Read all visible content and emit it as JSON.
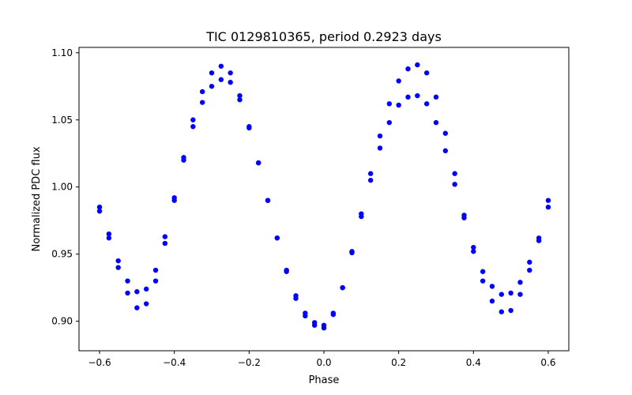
{
  "chart_data": {
    "type": "scatter",
    "title": "TIC 0129810365, period 0.2923 days",
    "xlabel": "Phase",
    "ylabel": "Normalized PDC flux",
    "xlim": [
      -0.655,
      0.655
    ],
    "ylim": [
      0.878,
      1.104
    ],
    "xticks": [
      -0.6,
      -0.4,
      -0.2,
      0.0,
      0.2,
      0.4,
      0.6
    ],
    "xtick_labels": [
      "−0.6",
      "−0.4",
      "−0.2",
      "0.0",
      "0.2",
      "0.4",
      "0.6"
    ],
    "yticks": [
      0.9,
      0.95,
      1.0,
      1.05,
      1.1
    ],
    "ytick_labels": [
      "0.90",
      "0.95",
      "1.00",
      "1.05",
      "1.10"
    ],
    "grid": false,
    "marker_color": "#0000ff",
    "series": [
      {
        "values_x": [
          -0.6,
          -0.575,
          -0.55,
          -0.525,
          -0.5,
          -0.475,
          -0.45,
          -0.425,
          -0.4,
          -0.375,
          -0.35,
          -0.325,
          -0.3,
          -0.275,
          -0.25,
          -0.225,
          -0.2,
          -0.175,
          -0.15,
          -0.125,
          -0.1,
          -0.075,
          -0.05,
          -0.025,
          0.0,
          0.025,
          0.05,
          0.075,
          0.1,
          0.125,
          0.15,
          0.175,
          0.2,
          0.225,
          0.25,
          0.275,
          0.3,
          0.325,
          0.35,
          0.375,
          0.4,
          0.425,
          0.45,
          0.475,
          0.5,
          0.525,
          0.55,
          0.575,
          0.6
        ],
        "values_y": [
          0.982,
          0.962,
          0.94,
          0.921,
          0.91,
          0.913,
          0.93,
          0.958,
          0.99,
          1.022,
          1.05,
          1.071,
          1.085,
          1.09,
          1.085,
          1.068,
          1.045,
          1.018,
          0.99,
          0.962,
          0.937,
          0.917,
          0.904,
          0.897,
          0.895,
          0.905,
          0.925,
          0.952,
          0.98,
          1.01,
          1.038,
          1.062,
          1.079,
          1.088,
          1.091,
          1.085,
          1.067,
          1.04,
          1.01,
          0.979,
          0.952,
          0.93,
          0.915,
          0.907,
          0.908,
          0.92,
          0.938,
          0.96,
          0.985
        ]
      },
      {
        "values_x": [
          -0.6,
          -0.575,
          -0.55,
          -0.525,
          -0.5,
          -0.475,
          -0.45,
          -0.425,
          -0.4,
          -0.375,
          -0.35,
          -0.325,
          -0.3,
          -0.275,
          -0.25,
          -0.225,
          -0.2,
          -0.175,
          -0.15,
          -0.125,
          -0.1,
          -0.075,
          -0.05,
          -0.025,
          0.0,
          0.025,
          0.05,
          0.075,
          0.1,
          0.125,
          0.15,
          0.175,
          0.2,
          0.225,
          0.25,
          0.275,
          0.3,
          0.325,
          0.35,
          0.375,
          0.4,
          0.425,
          0.45,
          0.475,
          0.5,
          0.525,
          0.55,
          0.575,
          0.6
        ],
        "values_y": [
          0.985,
          0.965,
          0.945,
          0.93,
          0.922,
          0.924,
          0.938,
          0.963,
          0.992,
          1.02,
          1.045,
          1.063,
          1.075,
          1.08,
          1.078,
          1.065,
          1.044,
          1.018,
          0.99,
          0.962,
          0.938,
          0.919,
          0.906,
          0.899,
          0.897,
          0.906,
          0.925,
          0.951,
          0.978,
          1.005,
          1.029,
          1.048,
          1.061,
          1.067,
          1.068,
          1.062,
          1.048,
          1.027,
          1.002,
          0.977,
          0.955,
          0.937,
          0.926,
          0.92,
          0.921,
          0.929,
          0.944,
          0.962,
          0.99
        ]
      }
    ]
  }
}
